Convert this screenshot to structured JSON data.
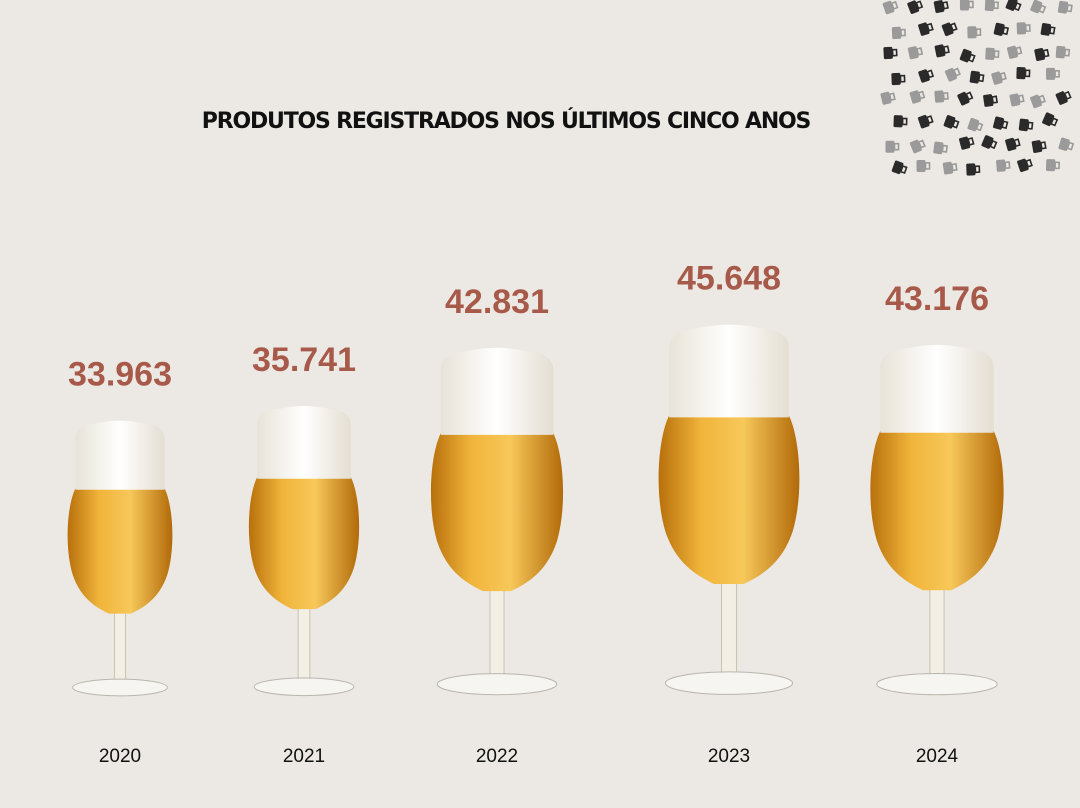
{
  "chart_data": {
    "type": "pictograph",
    "title": "PRODUTOS REGISTRADOS NOS ÚLTIMOS CINCO ANOS",
    "categories": [
      "2020",
      "2021",
      "2022",
      "2023",
      "2024"
    ],
    "values": [
      33963,
      35741,
      42831,
      45648,
      43176
    ],
    "value_labels": [
      "33.963",
      "35.741",
      "42.831",
      "45.648",
      "43.176"
    ],
    "color": "#a85a4a"
  }
}
